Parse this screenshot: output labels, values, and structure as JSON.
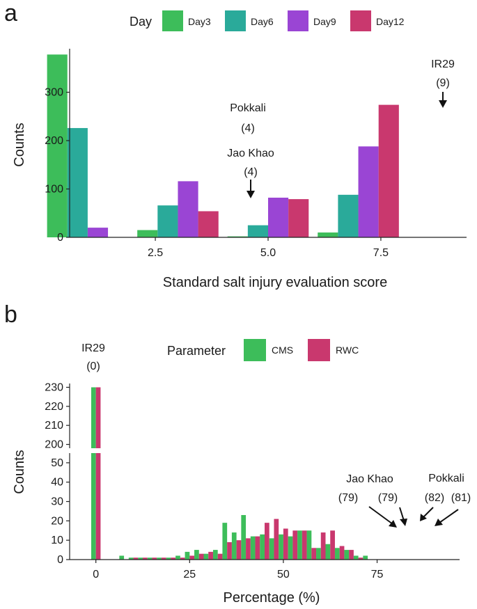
{
  "colors": {
    "Day3": "#3dbd5a",
    "Day6": "#2aaa9a",
    "Day9": "#9a45d4",
    "Day12": "#c9386e",
    "CMS": "#3dbd5a",
    "RWC": "#c9386e",
    "axis": "#222222",
    "text": "#1a1a1a"
  },
  "chart_data": [
    {
      "panel": "a",
      "type": "bar",
      "xlabel": "Standard salt injury evaluation score",
      "ylabel": "Counts",
      "xlim": [
        0.6,
        9.4
      ],
      "ylim": [
        0,
        390
      ],
      "x_ticks": [
        2.5,
        5.0,
        7.5
      ],
      "x_tick_labels": [
        "2.5",
        "5.0",
        "7.5"
      ],
      "y_ticks": [
        0,
        100,
        200,
        300
      ],
      "y_tick_labels": [
        "0",
        "100",
        "200",
        "300"
      ],
      "legend": {
        "title": "Day",
        "entries": [
          "Day3",
          "Day6",
          "Day9",
          "Day12"
        ],
        "position": "top"
      },
      "categories": [
        1,
        3,
        5,
        7,
        9
      ],
      "series": [
        {
          "name": "Day3",
          "values": [
            378,
            15,
            2,
            10,
            0
          ]
        },
        {
          "name": "Day6",
          "values": [
            226,
            66,
            25,
            88,
            0
          ]
        },
        {
          "name": "Day9",
          "values": [
            20,
            116,
            82,
            188,
            0
          ]
        },
        {
          "name": "Day12",
          "values": [
            0,
            54,
            79,
            274,
            0
          ]
        }
      ],
      "annotations": [
        {
          "label": "IR29",
          "value": "(9)"
        },
        {
          "label": "Pokkali",
          "value": "(4)"
        },
        {
          "label": "Jao Khao",
          "value": "(4)"
        }
      ]
    },
    {
      "panel": "b",
      "type": "bar",
      "xlabel": "Percentage (%)",
      "ylabel": "Counts",
      "xlim": [
        -7,
        97
      ],
      "ylim_lower": [
        0,
        55
      ],
      "ylim_upper": [
        198,
        232
      ],
      "x_ticks": [
        0,
        25,
        50,
        75
      ],
      "x_tick_labels": [
        "0",
        "25",
        "50",
        "75"
      ],
      "y_ticks_lower": [
        0,
        10,
        20,
        30,
        40,
        50
      ],
      "y_tick_labels_lower": [
        "0",
        "10",
        "20",
        "30",
        "40",
        "50"
      ],
      "y_ticks_upper": [
        200,
        210,
        220,
        230
      ],
      "y_tick_labels_upper": [
        "200",
        "210",
        "220",
        "230"
      ],
      "legend": {
        "title": "Parameter",
        "entries": [
          "CMS",
          "RWC"
        ],
        "position": "top"
      },
      "bin_width": 2.5,
      "x": [
        0,
        7.5,
        10,
        12.5,
        15,
        17.5,
        20,
        22.5,
        25,
        27.5,
        30,
        32.5,
        35,
        37.5,
        40,
        42.5,
        45,
        47.5,
        50,
        52.5,
        55,
        57.5,
        60,
        62.5,
        65,
        67.5,
        70,
        72.5,
        75,
        77.5,
        80,
        82.5,
        85,
        87.5,
        90,
        92.5
      ],
      "series": [
        {
          "name": "CMS",
          "values": [
            230,
            2,
            1,
            1,
            1,
            1,
            1,
            2,
            4,
            5,
            3,
            5,
            19,
            14,
            23,
            12,
            13,
            11,
            13,
            12,
            15,
            15,
            6,
            8,
            6,
            5,
            2,
            2,
            0,
            0,
            0,
            0,
            0,
            0,
            0,
            0
          ]
        },
        {
          "name": "RWC",
          "values": [
            230,
            0,
            1,
            1,
            1,
            1,
            1,
            1,
            2,
            3,
            4,
            3,
            9,
            10,
            11,
            12,
            19,
            21,
            16,
            15,
            15,
            6,
            14,
            15,
            7,
            5,
            1,
            0,
            0,
            0,
            0,
            0,
            0,
            0,
            0,
            0
          ]
        }
      ],
      "annotations": [
        {
          "label": "IR29",
          "value": "(0)"
        },
        {
          "label": "Jao Khao",
          "value": "(79)",
          "value2": "(79)"
        },
        {
          "label": "Pokkali",
          "value": "(82)",
          "value2": "(81)"
        }
      ]
    }
  ],
  "panels": {
    "a": "a",
    "b": "b"
  }
}
